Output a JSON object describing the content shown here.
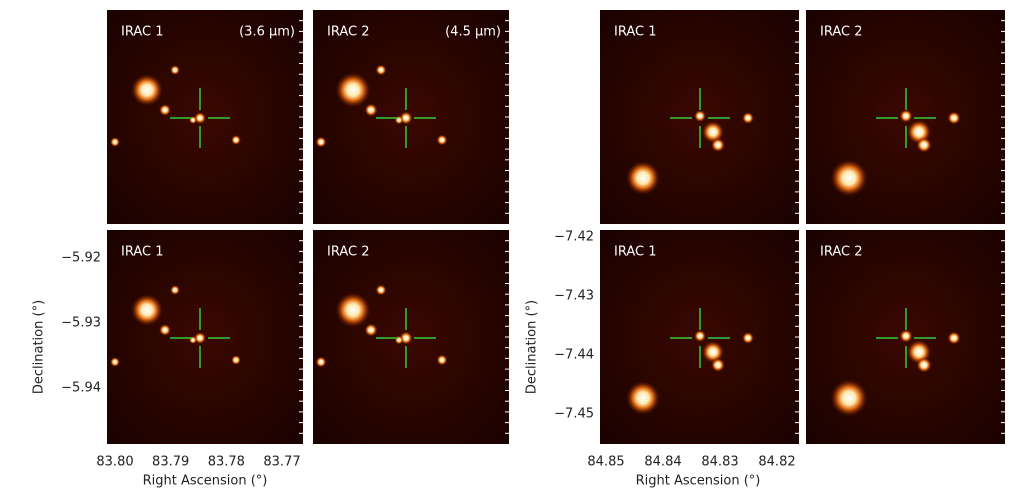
{
  "groups": [
    {
      "panels": [
        {
          "label": "IRAC 1",
          "band": "(3.6 µm)"
        },
        {
          "label": "IRAC 2",
          "band": "(4.5 µm)"
        },
        {
          "label": "IRAC 1"
        },
        {
          "label": "IRAC 2"
        }
      ],
      "x_ticks": [
        "83.80",
        "83.79",
        "83.78",
        "83.77"
      ],
      "y_ticks": [
        "−5.92",
        "−5.93",
        "−5.94"
      ],
      "x_label": "Right Ascension (°)",
      "y_label": "Declination (°)"
    },
    {
      "panels": [
        {
          "label": "IRAC 1"
        },
        {
          "label": "IRAC 2"
        },
        {
          "label": "IRAC 1"
        },
        {
          "label": "IRAC 2"
        }
      ],
      "x_ticks": [
        "84.85",
        "84.84",
        "84.83",
        "84.82"
      ],
      "y_ticks": [
        "−7.42",
        "−7.43",
        "−7.44",
        "−7.45"
      ],
      "x_label": "Right Ascension (°)",
      "y_label": "Declination (°)"
    }
  ]
}
